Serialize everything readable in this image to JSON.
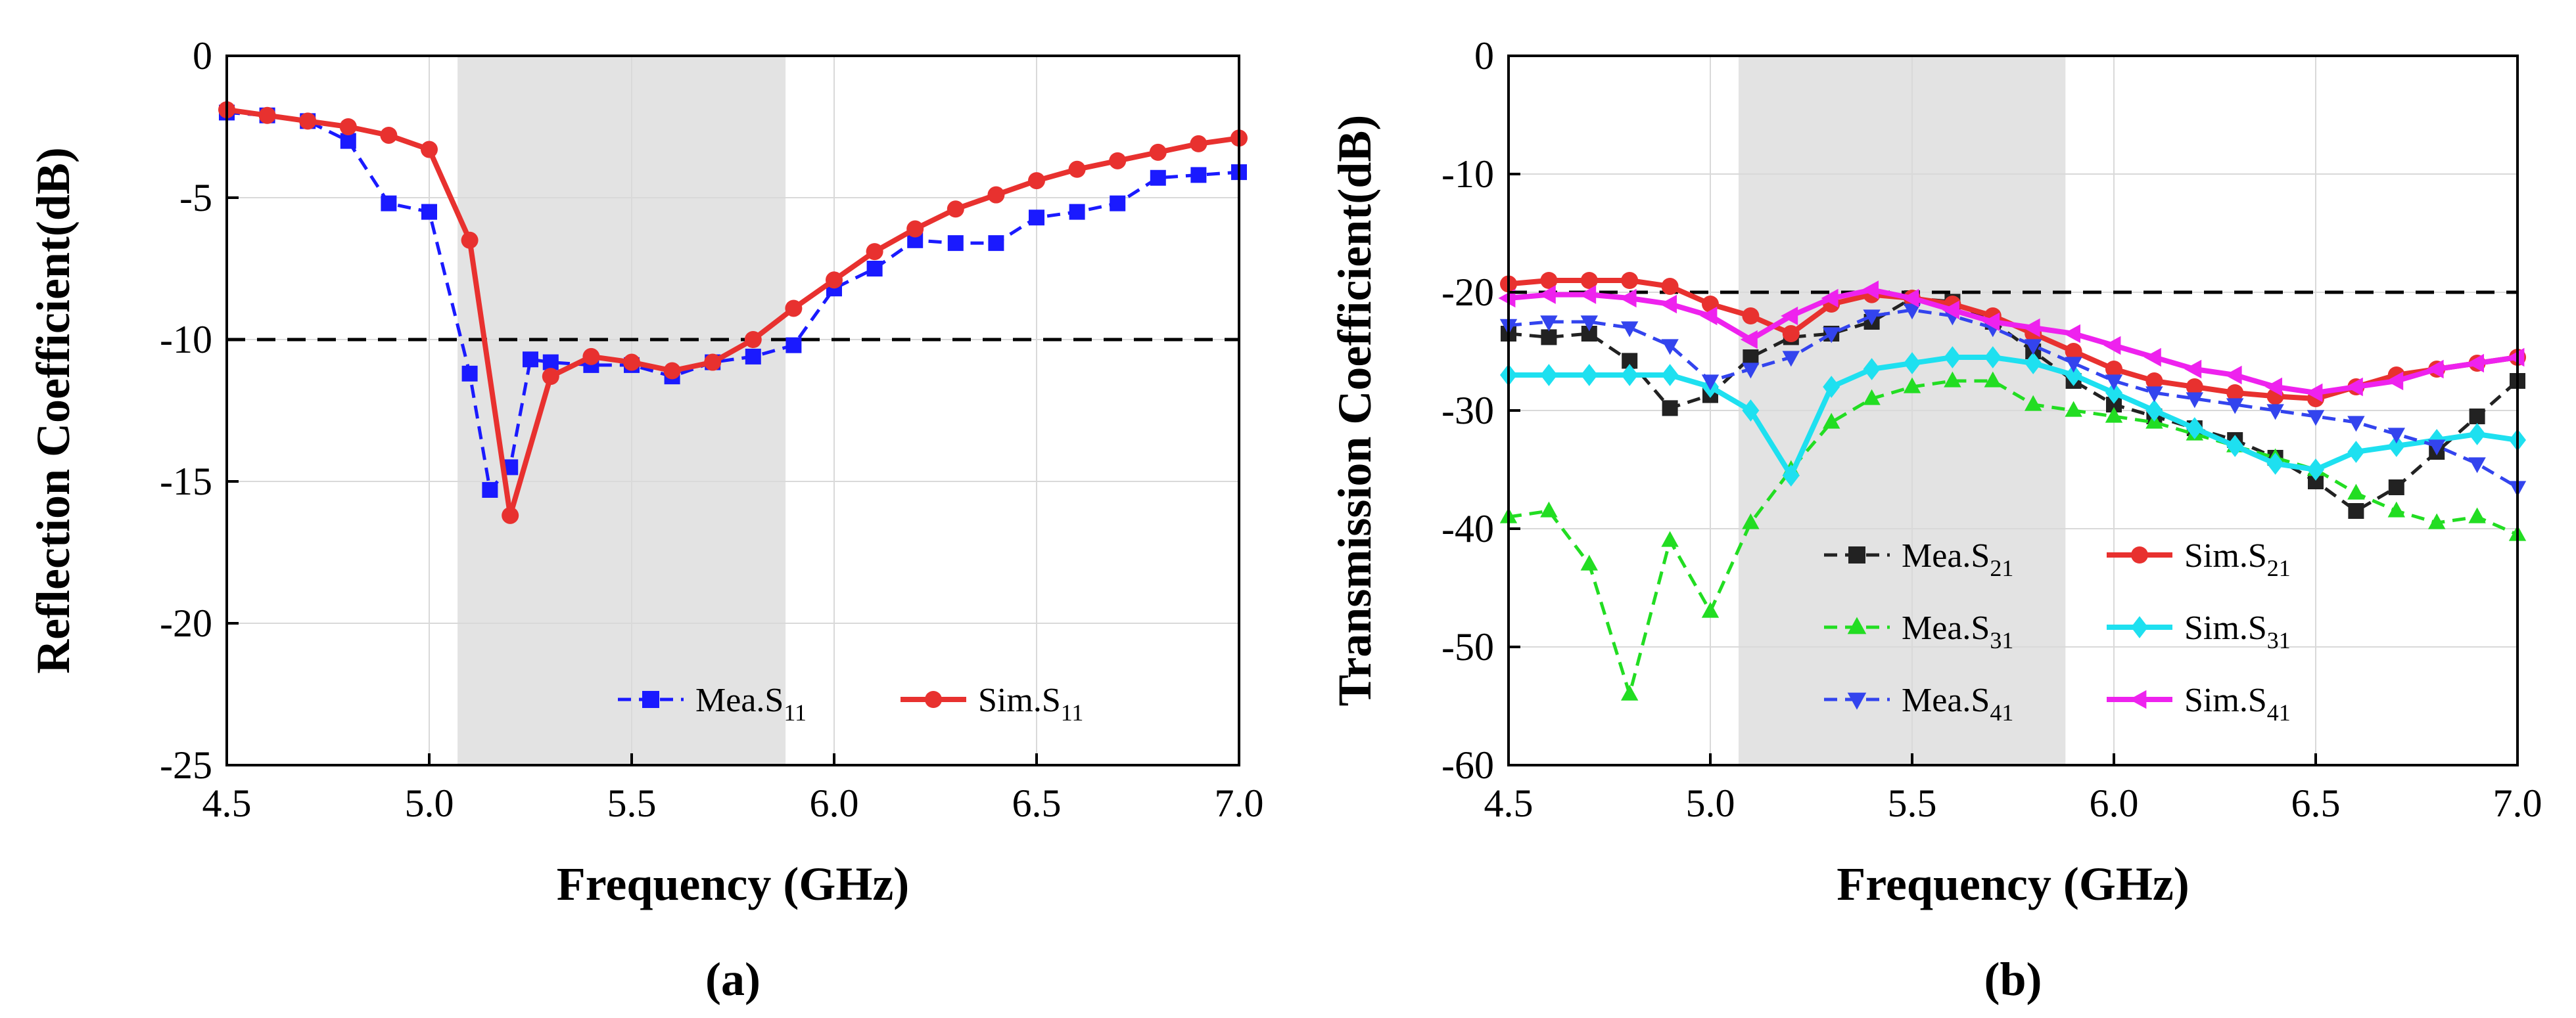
{
  "chart_data": [
    {
      "type": "line",
      "panel_label": "(a)",
      "xlabel": "Frequency (GHz)",
      "ylabel": "Reflection Coefficient(dB)",
      "xlim": [
        4.5,
        7.0
      ],
      "ylim": [
        -25,
        0
      ],
      "xticks": [
        4.5,
        5.0,
        5.5,
        6.0,
        6.5,
        7.0
      ],
      "xtick_labels": [
        "4.5",
        "5.0",
        "5.5",
        "6.0",
        "6.5",
        "7.0"
      ],
      "yticks": [
        0,
        -5,
        -10,
        -15,
        -20,
        -25
      ],
      "ytick_labels": [
        "0",
        "-5",
        "-10",
        "-15",
        "-20",
        "-25"
      ],
      "grid": true,
      "shaded_band": [
        5.07,
        5.88
      ],
      "reference_line": -10,
      "legend_position": "lower-right",
      "series": [
        {
          "name": "Mea.S11",
          "prefix": "Mea.S",
          "sub": "11",
          "color": "#1a1aff",
          "dash": "dashed",
          "marker": "square",
          "x": [
            4.5,
            4.6,
            4.7,
            4.8,
            4.9,
            5.0,
            5.1,
            5.15,
            5.2,
            5.25,
            5.3,
            5.4,
            5.5,
            5.6,
            5.7,
            5.8,
            5.9,
            6.0,
            6.1,
            6.2,
            6.3,
            6.4,
            6.5,
            6.6,
            6.7,
            6.8,
            6.9,
            7.0
          ],
          "y": [
            -2.0,
            -2.1,
            -2.3,
            -3.0,
            -5.2,
            -5.5,
            -11.2,
            -15.3,
            -14.5,
            -10.7,
            -10.8,
            -10.9,
            -10.9,
            -11.3,
            -10.8,
            -10.6,
            -10.2,
            -8.2,
            -7.5,
            -6.5,
            -6.6,
            -6.6,
            -5.7,
            -5.5,
            -5.2,
            -4.3,
            -4.2,
            -4.1
          ]
        },
        {
          "name": "Sim.S11",
          "prefix": "Sim.S",
          "sub": "11",
          "color": "#e8312f",
          "dash": "solid",
          "marker": "circle",
          "x": [
            4.5,
            4.6,
            4.7,
            4.8,
            4.9,
            5.0,
            5.1,
            5.2,
            5.3,
            5.4,
            5.5,
            5.6,
            5.7,
            5.8,
            5.9,
            6.0,
            6.1,
            6.2,
            6.3,
            6.4,
            6.5,
            6.6,
            6.7,
            6.8,
            6.9,
            7.0
          ],
          "y": [
            -1.9,
            -2.1,
            -2.3,
            -2.5,
            -2.8,
            -3.3,
            -6.5,
            -16.2,
            -11.3,
            -10.6,
            -10.8,
            -11.1,
            -10.8,
            -10.0,
            -8.9,
            -7.9,
            -6.9,
            -6.1,
            -5.4,
            -4.9,
            -4.4,
            -4.0,
            -3.7,
            -3.4,
            -3.1,
            -2.9
          ]
        }
      ]
    },
    {
      "type": "line",
      "panel_label": "(b)",
      "xlabel": "Frequency (GHz)",
      "ylabel": "Transmission Coefficient(dB)",
      "xlim": [
        4.5,
        7.0
      ],
      "ylim": [
        -60,
        0
      ],
      "xticks": [
        4.5,
        5.0,
        5.5,
        6.0,
        6.5,
        7.0
      ],
      "xtick_labels": [
        "4.5",
        "5.0",
        "5.5",
        "6.0",
        "6.5",
        "7.0"
      ],
      "yticks": [
        0,
        -10,
        -20,
        -30,
        -40,
        -50,
        -60
      ],
      "ytick_labels": [
        "0",
        "-10",
        "-20",
        "-30",
        "-40",
        "-50",
        "-60"
      ],
      "grid": true,
      "shaded_band": [
        5.07,
        5.88
      ],
      "reference_line": -20,
      "legend_position": "lower-center",
      "series": [
        {
          "name": "Mea.S21",
          "prefix": "Mea.S",
          "sub": "21",
          "color": "#222222",
          "dash": "dashed",
          "marker": "square",
          "x": [
            4.5,
            4.6,
            4.7,
            4.8,
            4.9,
            5.0,
            5.1,
            5.2,
            5.3,
            5.4,
            5.5,
            5.6,
            5.7,
            5.8,
            5.9,
            6.0,
            6.1,
            6.2,
            6.3,
            6.4,
            6.5,
            6.6,
            6.7,
            6.8,
            6.9,
            7.0
          ],
          "y": [
            -23.5,
            -23.8,
            -23.5,
            -25.8,
            -29.8,
            -28.7,
            -25.5,
            -23.8,
            -23.5,
            -22.5,
            -20.5,
            -20.8,
            -22.5,
            -25.0,
            -27.5,
            -29.5,
            -30.5,
            -31.5,
            -32.5,
            -34.0,
            -36.0,
            -38.5,
            -36.5,
            -33.5,
            -30.5,
            -27.5
          ]
        },
        {
          "name": "Sim.S21",
          "prefix": "Sim.S",
          "sub": "21",
          "color": "#e8312f",
          "dash": "solid",
          "marker": "circle",
          "x": [
            4.5,
            4.6,
            4.7,
            4.8,
            4.9,
            5.0,
            5.1,
            5.2,
            5.3,
            5.4,
            5.5,
            5.6,
            5.7,
            5.8,
            5.9,
            6.0,
            6.1,
            6.2,
            6.3,
            6.4,
            6.5,
            6.6,
            6.7,
            6.8,
            6.9,
            7.0
          ],
          "y": [
            -19.3,
            -19.0,
            -19.0,
            -19.0,
            -19.5,
            -21.0,
            -22.0,
            -23.5,
            -21.0,
            -20.2,
            -20.5,
            -21.0,
            -22.0,
            -23.5,
            -25.0,
            -26.5,
            -27.5,
            -28.0,
            -28.5,
            -28.8,
            -29.0,
            -28.0,
            -27.0,
            -26.5,
            -26.0,
            -25.5
          ]
        },
        {
          "name": "Mea.S31",
          "prefix": "Mea.S",
          "sub": "31",
          "color": "#22dd22",
          "dash": "dashed",
          "marker": "triangle-up",
          "x": [
            4.5,
            4.6,
            4.7,
            4.8,
            4.9,
            5.0,
            5.1,
            5.2,
            5.3,
            5.4,
            5.5,
            5.6,
            5.7,
            5.8,
            5.9,
            6.0,
            6.1,
            6.2,
            6.3,
            6.4,
            6.5,
            6.6,
            6.7,
            6.8,
            6.9,
            7.0
          ],
          "y": [
            -39.0,
            -38.5,
            -43.0,
            -54.0,
            -41.0,
            -47.0,
            -39.5,
            -35.0,
            -31.0,
            -29.0,
            -28.0,
            -27.5,
            -27.5,
            -29.5,
            -30.0,
            -30.5,
            -31.0,
            -32.0,
            -33.0,
            -34.0,
            -35.0,
            -37.0,
            -38.5,
            -39.5,
            -39.0,
            -40.5
          ]
        },
        {
          "name": "Sim.S31",
          "prefix": "Sim.S",
          "sub": "31",
          "color": "#1ee0f0",
          "dash": "solid",
          "marker": "diamond",
          "x": [
            4.5,
            4.6,
            4.7,
            4.8,
            4.9,
            5.0,
            5.1,
            5.2,
            5.3,
            5.4,
            5.5,
            5.6,
            5.7,
            5.8,
            5.9,
            6.0,
            6.1,
            6.2,
            6.3,
            6.4,
            6.5,
            6.6,
            6.7,
            6.8,
            6.9,
            7.0
          ],
          "y": [
            -27.0,
            -27.0,
            -27.0,
            -27.0,
            -27.0,
            -28.0,
            -30.0,
            -35.5,
            -28.0,
            -26.5,
            -26.0,
            -25.5,
            -25.5,
            -26.0,
            -27.0,
            -28.5,
            -30.0,
            -31.5,
            -33.0,
            -34.5,
            -35.0,
            -33.5,
            -33.0,
            -32.5,
            -32.0,
            -32.5
          ]
        },
        {
          "name": "Mea.S41",
          "prefix": "Mea.S",
          "sub": "41",
          "color": "#3344ee",
          "dash": "dashed",
          "marker": "triangle-down",
          "x": [
            4.5,
            4.6,
            4.7,
            4.8,
            4.9,
            5.0,
            5.1,
            5.2,
            5.3,
            5.4,
            5.5,
            5.6,
            5.7,
            5.8,
            5.9,
            6.0,
            6.1,
            6.2,
            6.3,
            6.4,
            6.5,
            6.6,
            6.7,
            6.8,
            6.9,
            7.0
          ],
          "y": [
            -22.8,
            -22.5,
            -22.5,
            -23.0,
            -24.5,
            -27.5,
            -26.5,
            -25.5,
            -23.5,
            -22.0,
            -21.5,
            -22.0,
            -23.0,
            -24.5,
            -26.0,
            -27.5,
            -28.5,
            -29.0,
            -29.5,
            -30.0,
            -30.5,
            -31.0,
            -32.0,
            -33.0,
            -34.5,
            -36.5
          ]
        },
        {
          "name": "Sim.S41",
          "prefix": "Sim.S",
          "sub": "41",
          "color": "#ee22ee",
          "dash": "solid",
          "marker": "triangle-left",
          "x": [
            4.5,
            4.6,
            4.7,
            4.8,
            4.9,
            5.0,
            5.1,
            5.2,
            5.3,
            5.4,
            5.5,
            5.6,
            5.7,
            5.8,
            5.9,
            6.0,
            6.1,
            6.2,
            6.3,
            6.4,
            6.5,
            6.6,
            6.7,
            6.8,
            6.9,
            7.0
          ],
          "y": [
            -20.5,
            -20.2,
            -20.2,
            -20.5,
            -21.0,
            -22.0,
            -24.0,
            -22.0,
            -20.5,
            -19.8,
            -20.5,
            -21.5,
            -22.5,
            -23.0,
            -23.5,
            -24.5,
            -25.5,
            -26.5,
            -27.0,
            -28.0,
            -28.5,
            -28.0,
            -27.5,
            -26.5,
            -26.0,
            -25.5
          ]
        }
      ]
    }
  ]
}
